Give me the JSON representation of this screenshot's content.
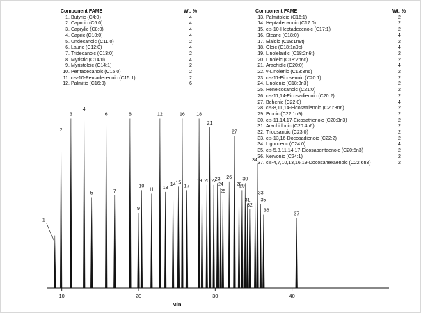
{
  "chart_data": {
    "type": "line",
    "subtype": "gc-chromatogram",
    "title": "",
    "xlabel": "Min",
    "ylabel": "",
    "x_ticks": [
      "10",
      "20",
      "30",
      "40"
    ],
    "xlim": [
      7.5,
      43
    ],
    "grid": false,
    "trace_color": "#111111",
    "legend_header": {
      "component": "Component FAME",
      "wt": "Wt. %"
    },
    "components_left": [
      {
        "num": "1.",
        "name": "Butyric (C4:0)",
        "wt": "4"
      },
      {
        "num": "2.",
        "name": "Caproic (C6:0)",
        "wt": "4"
      },
      {
        "num": "3.",
        "name": "Caprylic (C8:0)",
        "wt": "4"
      },
      {
        "num": "4.",
        "name": "Capric (C10:0)",
        "wt": "4"
      },
      {
        "num": "5.",
        "name": "Undecanoic (C11:0)",
        "wt": "2"
      },
      {
        "num": "6.",
        "name": "Lauric (C12:0)",
        "wt": "4"
      },
      {
        "num": "7.",
        "name": "Tridecanoic (C13:0)",
        "wt": "2"
      },
      {
        "num": "8.",
        "name": "Myristic (C14:0)",
        "wt": "4"
      },
      {
        "num": "9.",
        "name": "Myristoleic (C14:1)",
        "wt": "2"
      },
      {
        "num": "10.",
        "name": "Pentadecanoic (C15:0)",
        "wt": "2"
      },
      {
        "num": "11.",
        "name": "cis-10-Pentadecenoic (C15:1)",
        "wt": "2"
      },
      {
        "num": "12.",
        "name": "Palmitic (C16:0)",
        "wt": "6"
      }
    ],
    "components_right": [
      {
        "num": "13.",
        "name": "Palmitoleic (C16:1)",
        "wt": "2"
      },
      {
        "num": "14.",
        "name": "Heptadecanoic (C17:0)",
        "wt": "2"
      },
      {
        "num": "15.",
        "name": "cis-10-Heptadecenoic (C17:1)",
        "wt": "2"
      },
      {
        "num": "16.",
        "name": "Stearic (C18:0)",
        "wt": "4"
      },
      {
        "num": "17.",
        "name": "Elaidic (C18:1n9t)",
        "wt": "2"
      },
      {
        "num": "18.",
        "name": "Oleic (C18:1n9c)",
        "wt": "4"
      },
      {
        "num": "19.",
        "name": "Linolelaidic (C18:2n6t)",
        "wt": "2"
      },
      {
        "num": "20.",
        "name": "Linoleic (C18:2n6c)",
        "wt": "2"
      },
      {
        "num": "21.",
        "name": "Arachidic (C20:0)",
        "wt": "4"
      },
      {
        "num": "22.",
        "name": "γ-Linolenic (C18:3n6)",
        "wt": "2"
      },
      {
        "num": "23.",
        "name": "cis-11-Eicosenoic (C20:1)",
        "wt": "2"
      },
      {
        "num": "24.",
        "name": "Linolenic (C18:3n3)",
        "wt": "2"
      },
      {
        "num": "25.",
        "name": "Heneicosanoic (C21:0)",
        "wt": "2"
      },
      {
        "num": "26.",
        "name": "cis-11,14-Eicosadienoic (C20:2)",
        "wt": "2"
      },
      {
        "num": "27.",
        "name": "Behenic (C22:0)",
        "wt": "4"
      },
      {
        "num": "28.",
        "name": "cis-8,11,14-Eicosatrienoic (C20:3n6)",
        "wt": "2"
      },
      {
        "num": "29.",
        "name": "Erucic (C22:1n9)",
        "wt": "2"
      },
      {
        "num": "30.",
        "name": "cis-11,14,17-Eicosatrienoic (C20:3n3)",
        "wt": "2"
      },
      {
        "num": "31.",
        "name": "Arachidonic (C20:4n6)",
        "wt": "2"
      },
      {
        "num": "32.",
        "name": "Tricosanoic (C23:0)",
        "wt": "2"
      },
      {
        "num": "33.",
        "name": "cis-13,16-Docosadienoic (C22:2)",
        "wt": "2"
      },
      {
        "num": "34.",
        "name": "Lignoceric (C24:0)",
        "wt": "4"
      },
      {
        "num": "35.",
        "name": "cis-5,8,11,14,17-Eicosapentaenoic (C20:5n3)",
        "wt": "2"
      },
      {
        "num": "36.",
        "name": "Nervonic (C24:1)",
        "wt": "2"
      },
      {
        "num": "37.",
        "name": "cis-4,7,10,13,16,19-Docosahexaenoic (C22:6n3)",
        "wt": "2"
      }
    ],
    "peaks": [
      {
        "n": 1,
        "rt": 9.1,
        "h": 0.3,
        "dx": -16,
        "dy": -16,
        "leader": true
      },
      {
        "n": 2,
        "rt": 9.9,
        "h": 0.88
      },
      {
        "n": 3,
        "rt": 11.2,
        "h": 0.97
      },
      {
        "n": 4,
        "rt": 12.9,
        "h": 1.0
      },
      {
        "n": 5,
        "rt": 13.9,
        "h": 0.52
      },
      {
        "n": 6,
        "rt": 15.8,
        "h": 0.97
      },
      {
        "n": 7,
        "rt": 16.9,
        "h": 0.53
      },
      {
        "n": 8,
        "rt": 18.9,
        "h": 0.97
      },
      {
        "n": 9,
        "rt": 20.0,
        "h": 0.43
      },
      {
        "n": 10,
        "rt": 20.4,
        "h": 0.56
      },
      {
        "n": 11,
        "rt": 21.7,
        "h": 0.54
      },
      {
        "n": 12,
        "rt": 22.8,
        "h": 0.97
      },
      {
        "n": 13,
        "rt": 23.5,
        "h": 0.55
      },
      {
        "n": 14,
        "rt": 24.5,
        "h": 0.57
      },
      {
        "n": 15,
        "rt": 25.2,
        "h": 0.58
      },
      {
        "n": 16,
        "rt": 25.7,
        "h": 0.97
      },
      {
        "n": 17,
        "rt": 26.3,
        "h": 0.56
      },
      {
        "n": 18,
        "rt": 27.9,
        "h": 0.97
      },
      {
        "n": 19,
        "rt": 28.3,
        "h": 0.59,
        "dx": -4
      },
      {
        "n": 20,
        "rt": 28.9,
        "h": 0.59
      },
      {
        "n": 21,
        "rt": 29.3,
        "h": 0.92
      },
      {
        "n": 22,
        "rt": 29.8,
        "h": 0.59
      },
      {
        "n": 23,
        "rt": 30.3,
        "h": 0.6
      },
      {
        "n": 24,
        "rt": 30.7,
        "h": 0.57
      },
      {
        "n": 25,
        "rt": 31.0,
        "h": 0.53
      },
      {
        "n": 26,
        "rt": 31.8,
        "h": 0.61
      },
      {
        "n": 27,
        "rt": 32.5,
        "h": 0.87
      },
      {
        "n": 28,
        "rt": 33.1,
        "h": 0.57
      },
      {
        "n": 29,
        "rt": 33.5,
        "h": 0.56
      },
      {
        "n": 30,
        "rt": 33.9,
        "h": 0.6
      },
      {
        "n": 31,
        "rt": 34.2,
        "h": 0.48
      },
      {
        "n": 32,
        "rt": 34.5,
        "h": 0.45
      },
      {
        "n": 33,
        "rt": 35.2,
        "h": 0.52,
        "dx": 8
      },
      {
        "n": 34,
        "rt": 35.5,
        "h": 0.71,
        "dx": -4
      },
      {
        "n": 35,
        "rt": 35.9,
        "h": 0.48,
        "dx": 4
      },
      {
        "n": 36,
        "rt": 36.3,
        "h": 0.42,
        "dx": 4
      },
      {
        "n": 37,
        "rt": 40.6,
        "h": 0.4
      }
    ]
  }
}
